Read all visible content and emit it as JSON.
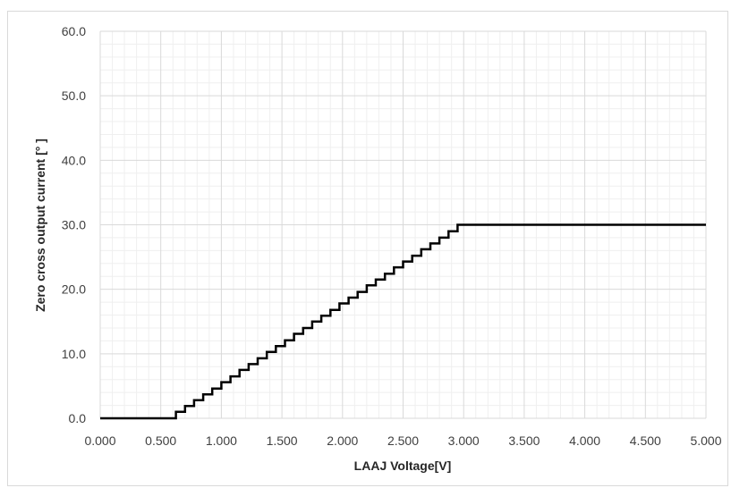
{
  "chart_data": {
    "type": "line",
    "title": "",
    "xlabel": "LAAJ Voltage[V]",
    "ylabel": "Zero cross output current [°  ]",
    "xlim": [
      0,
      5
    ],
    "ylim": [
      0,
      60
    ],
    "x_ticks": [
      "0.000",
      "0.500",
      "1.000",
      "1.500",
      "2.000",
      "2.500",
      "3.000",
      "3.500",
      "4.000",
      "4.500",
      "5.000"
    ],
    "y_ticks": [
      "0.0",
      "10.0",
      "20.0",
      "30.0",
      "40.0",
      "50.0",
      "60.0"
    ],
    "x_tick_values": [
      0,
      0.5,
      1,
      1.5,
      2,
      2.5,
      3,
      3.5,
      4,
      4.5,
      5
    ],
    "y_tick_values": [
      0,
      10,
      20,
      30,
      40,
      50,
      60
    ],
    "grid": true,
    "minor_grid": true,
    "legend": "none",
    "colors": {
      "line": "#000000",
      "major_grid": "#d9d9d9",
      "minor_grid": "#efefef",
      "frame": "#d9d9d9"
    },
    "series": [
      {
        "step": "post",
        "x": [
          0.0,
          0.625,
          0.7,
          0.775,
          0.85,
          0.925,
          1.0,
          1.075,
          1.15,
          1.225,
          1.3,
          1.375,
          1.45,
          1.525,
          1.6,
          1.675,
          1.75,
          1.825,
          1.9,
          1.975,
          2.05,
          2.125,
          2.2,
          2.275,
          2.35,
          2.425,
          2.5,
          2.575,
          2.65,
          2.725,
          2.8,
          2.875,
          2.95,
          3.025,
          5.0
        ],
        "y": [
          0.0,
          1.0,
          1.9,
          2.8,
          3.7,
          4.6,
          5.6,
          6.5,
          7.5,
          8.4,
          9.3,
          10.3,
          11.2,
          12.1,
          13.1,
          14.0,
          15.0,
          15.9,
          16.8,
          17.8,
          18.7,
          19.6,
          20.6,
          21.5,
          22.4,
          23.4,
          24.3,
          25.2,
          26.2,
          27.1,
          28.0,
          29.0,
          30.0,
          30.0,
          30.0
        ]
      }
    ]
  }
}
